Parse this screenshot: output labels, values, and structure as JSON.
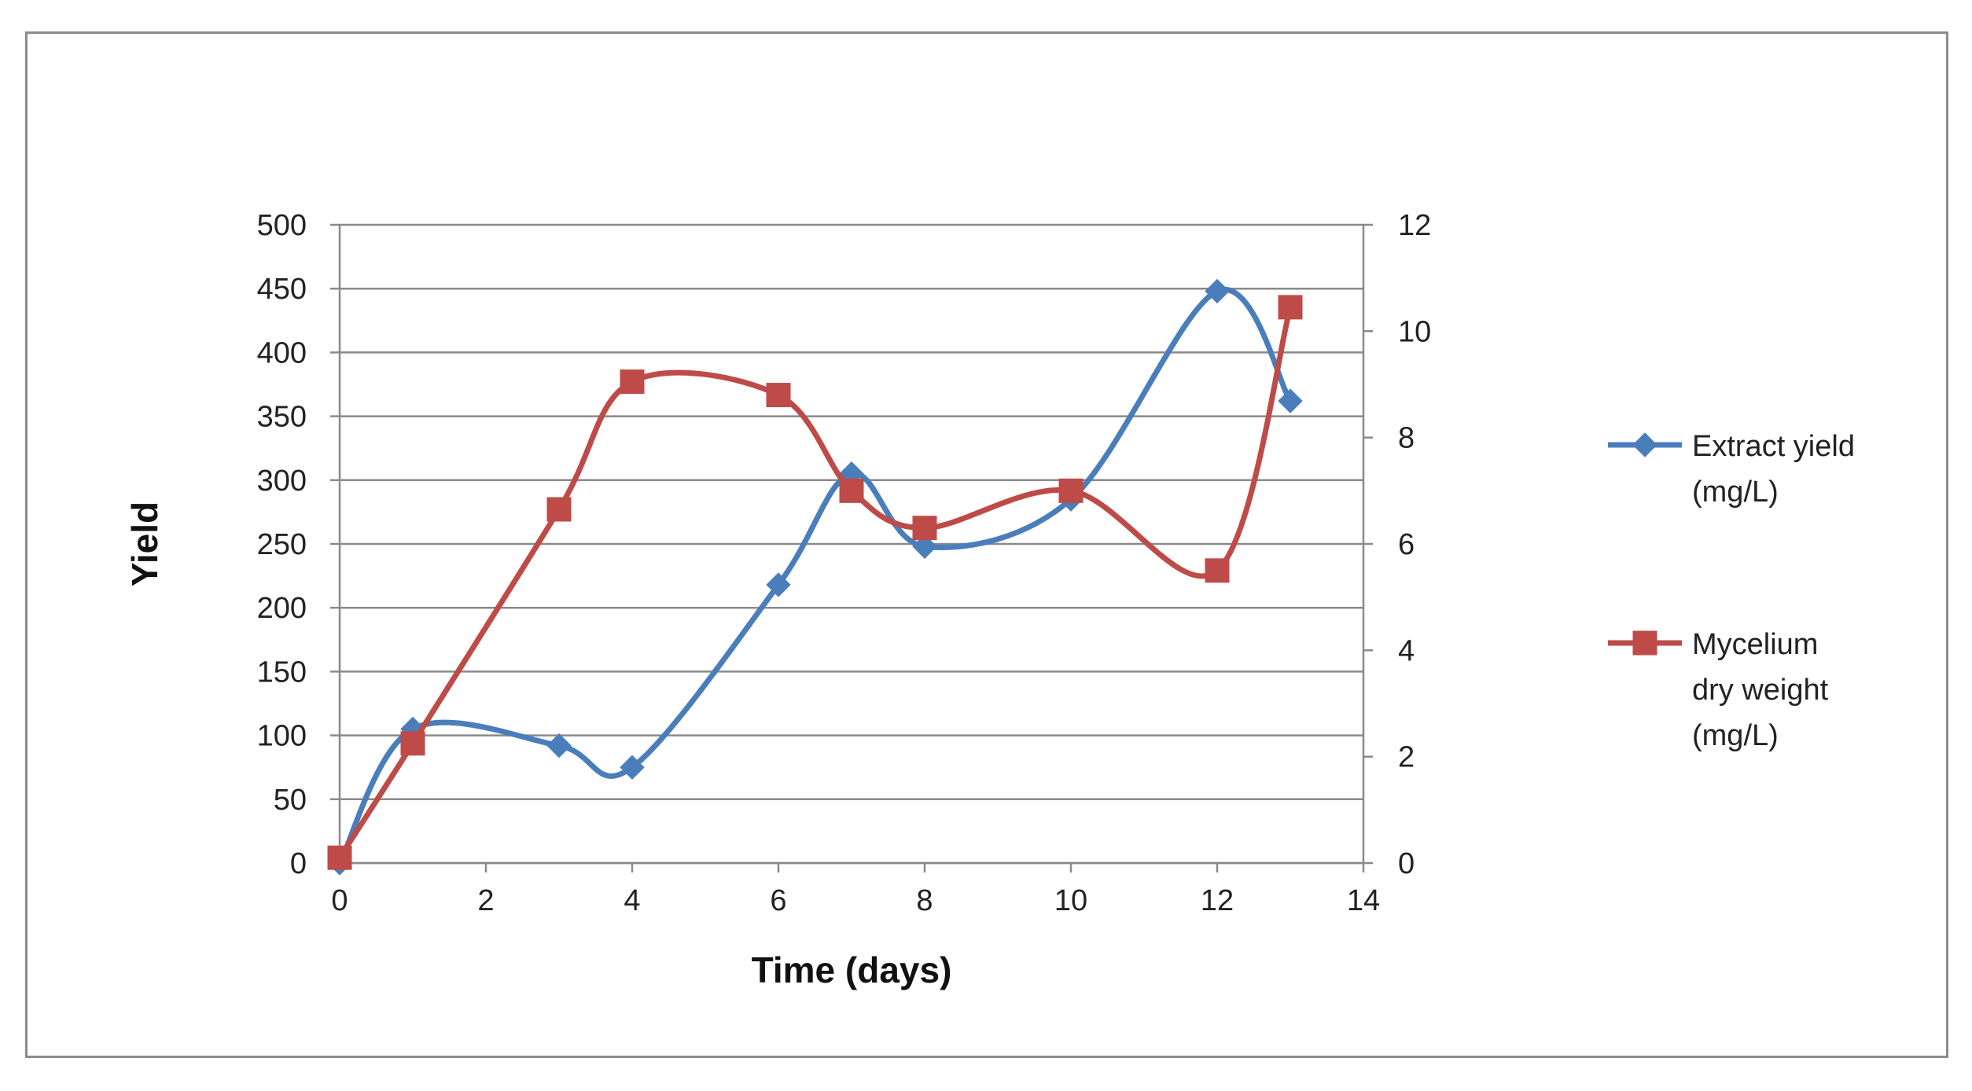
{
  "chart_data": {
    "type": "line",
    "title": "",
    "xlabel": "Time (days)",
    "ylabel": "Yield",
    "y2label": "",
    "xlim": [
      0,
      14
    ],
    "ylim": [
      0,
      500
    ],
    "y2lim": [
      0,
      12
    ],
    "x_ticks": [
      "0",
      "2",
      "4",
      "6",
      "8",
      "10",
      "12",
      "14"
    ],
    "y_ticks": [
      "0",
      "50",
      "100",
      "150",
      "200",
      "250",
      "300",
      "350",
      "400",
      "450",
      "500"
    ],
    "y2_ticks": [
      "0",
      "2",
      "4",
      "6",
      "8",
      "10",
      "12"
    ],
    "grid": "horizontal",
    "legend_position": "right",
    "series": [
      {
        "name": "Extract yield (mg/L)",
        "legend_lines": [
          "Extract yield",
          "(mg/L)"
        ],
        "axis": "left",
        "marker": "diamond",
        "color": "#4a7ebb",
        "x": [
          0,
          1,
          3,
          4,
          6,
          7,
          8,
          10,
          12,
          13
        ],
        "y": [
          0,
          105,
          92,
          75,
          218,
          305,
          248,
          285,
          448,
          362
        ]
      },
      {
        "name": "Mycelium dry weight (mg/L)",
        "legend_lines": [
          "Mycelium",
          "dry weight",
          "(mg/L)"
        ],
        "axis": "right",
        "marker": "square",
        "color": "#be4b48",
        "x": [
          0,
          1,
          3,
          4,
          6,
          7,
          8,
          10,
          12,
          13
        ],
        "y": [
          0.1,
          2.25,
          6.65,
          9.05,
          8.8,
          7.0,
          6.3,
          7.0,
          5.5,
          10.45
        ]
      }
    ]
  }
}
